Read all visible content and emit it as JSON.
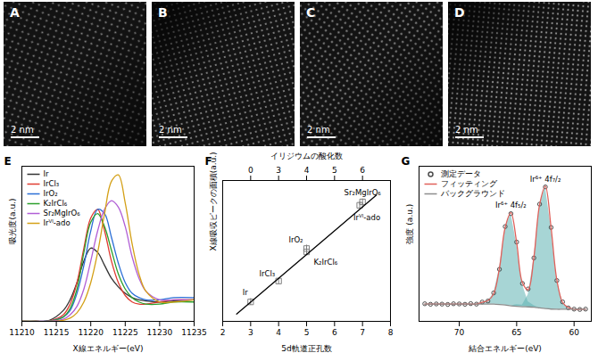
{
  "images": [
    {
      "label": "A",
      "scale_bar": "2 nm"
    },
    {
      "label": "B",
      "scale_bar": "2 nm"
    },
    {
      "label": "C",
      "scale_bar": "2 nm"
    },
    {
      "label": "D",
      "scale_bar": "2 nm"
    }
  ],
  "chart_data": [
    {
      "type": "line",
      "title": "E",
      "x_label": "X線エネルギー(eV)",
      "y_label": "吸光度(a.u.)",
      "x": [
        11210,
        11212,
        11214,
        11216,
        11217,
        11218,
        11219,
        11220,
        11221,
        11222,
        11223,
        11224,
        11225,
        11226,
        11227,
        11228,
        11230,
        11232,
        11235
      ],
      "xlim": [
        11210,
        11235
      ],
      "xticks": [
        11210,
        11215,
        11220,
        11225,
        11230,
        11235
      ],
      "ylim": [
        0,
        7.2
      ],
      "tick_labels": "x",
      "legend": "upper left",
      "series": [
        {
          "name": "Ir",
          "color": "#333333",
          "values": [
            0,
            0,
            0.05,
            0.5,
            1.0,
            1.8,
            2.8,
            3.4,
            3.2,
            2.6,
            2.0,
            1.6,
            1.3,
            1.1,
            1.0,
            0.95,
            0.9,
            0.95,
            1.0
          ]
        },
        {
          "name": "IrCl₃",
          "color": "#e03c31",
          "values": [
            0,
            0,
            0.02,
            0.3,
            0.8,
            1.8,
            3.4,
            4.8,
            5.2,
            4.2,
            2.8,
            1.8,
            1.2,
            0.9,
            0.8,
            0.8,
            0.9,
            1.0,
            1.0
          ]
        },
        {
          "name": "IrO₂",
          "color": "#2b6fd6",
          "values": [
            0,
            0,
            0.01,
            0.2,
            0.5,
            1.3,
            2.6,
            4.2,
            5.2,
            5.0,
            3.9,
            2.7,
            1.8,
            1.3,
            1.1,
            1.0,
            1.0,
            1.1,
            1.1
          ]
        },
        {
          "name": "K₂IrCl₆",
          "color": "#2ca02c",
          "values": [
            0,
            0,
            0.01,
            0.2,
            0.6,
            1.5,
            3.2,
            4.6,
            5.0,
            4.4,
            3.3,
            2.2,
            1.5,
            1.1,
            0.9,
            0.8,
            0.8,
            0.9,
            0.9
          ]
        },
        {
          "name": "Sr₂MgIrO₆",
          "color": "#b15fd6",
          "values": [
            0,
            0,
            0.01,
            0.1,
            0.3,
            0.7,
            1.5,
            2.8,
            4.2,
            5.2,
            5.6,
            5.3,
            4.4,
            3.0,
            2.0,
            1.4,
            1.0,
            1.0,
            1.0
          ]
        },
        {
          "name": "Irⱽᴵ-ado",
          "color": "#d4a017",
          "values": [
            0,
            0,
            0,
            0.05,
            0.15,
            0.4,
            0.9,
            1.8,
            3.2,
            5.0,
            6.5,
            6.8,
            5.5,
            3.6,
            2.2,
            1.4,
            0.9,
            0.9,
            1.0
          ]
        }
      ]
    },
    {
      "type": "scatter",
      "title": "F",
      "x_label": "5d軌道正孔数",
      "y_label": "X線吸収ピークの面積(a.u.)",
      "x2_label": "イリジウムの酸化数",
      "xlim": [
        2,
        8
      ],
      "xticks": [
        2,
        3,
        4,
        5,
        6,
        7,
        8
      ],
      "x2ticks": [
        {
          "value": 3,
          "label": "0"
        },
        {
          "value": 4,
          "label": "3"
        },
        {
          "value": 5,
          "label": "4"
        },
        {
          "value": 6,
          "label": "5"
        },
        {
          "value": 7,
          "label": "6"
        }
      ],
      "ylim": [
        8,
        37
      ],
      "tick_labels": "x",
      "series": [
        {
          "type": "scatter",
          "color": "#7f7f7f",
          "marker": "square",
          "x": [
            3,
            4,
            5,
            5,
            7,
            6.9
          ],
          "values": [
            12,
            16.3,
            23,
            22.3,
            32.6,
            31.9
          ],
          "errors": [
            0.7,
            0.6,
            0.7,
            0.7,
            0.6,
            0.7
          ],
          "labels": [
            "Ir",
            "IrCl₃",
            "IrO₂",
            "K₂IrCl₆",
            "Sr₂MgIrO₆",
            "Irⱽᴵ-ado"
          ]
        },
        {
          "type": "line",
          "color": "#000000",
          "x": [
            2.5,
            7.5
          ],
          "values": [
            9.5,
            34
          ]
        }
      ]
    },
    {
      "type": "line",
      "title": "G",
      "x_label": "結合エネルギー(eV)",
      "y_label": "強度 (a.u.)",
      "x": [
        73,
        72.5,
        72,
        71.5,
        71,
        70.5,
        70,
        69.5,
        69,
        68.5,
        68,
        67.5,
        67,
        66.5,
        66,
        65.5,
        65,
        64.5,
        64,
        63.5,
        63,
        62.5,
        62,
        61.5,
        61,
        60.5,
        60,
        59.5,
        59
      ],
      "xlim": [
        73.5,
        58.5
      ],
      "xticks": [
        70,
        65,
        60
      ],
      "ylim": [
        0.05,
        0.95
      ],
      "tick_labels": "x",
      "legend": "upper left",
      "series": [
        {
          "name": "測定データ",
          "type": "scatter",
          "marker": "circle",
          "color": "#4d4d4d",
          "values": [
            0.152,
            0.149,
            0.151,
            0.15,
            0.148,
            0.152,
            0.151,
            0.149,
            0.153,
            0.15,
            0.162,
            0.168,
            0.215,
            0.352,
            0.6,
            0.675,
            0.51,
            0.27,
            0.238,
            0.418,
            0.73,
            0.83,
            0.595,
            0.287,
            0.163,
            0.128,
            0.121,
            0.119,
            0.121
          ]
        },
        {
          "name": "フィッティング",
          "type": "line",
          "color": "#e0605a",
          "values": [
            0.15,
            0.15,
            0.15,
            0.15,
            0.15,
            0.15,
            0.15,
            0.15,
            0.15,
            0.15,
            0.16,
            0.17,
            0.21,
            0.358,
            0.595,
            0.68,
            0.507,
            0.275,
            0.234,
            0.422,
            0.728,
            0.834,
            0.591,
            0.29,
            0.16,
            0.13,
            0.12,
            0.12,
            0.12
          ]
        },
        {
          "name": "バックグラウンド",
          "type": "line",
          "color": "#8c8c8c",
          "values": [
            0.15,
            0.15,
            0.15,
            0.15,
            0.15,
            0.15,
            0.15,
            0.15,
            0.15,
            0.15,
            0.15,
            0.15,
            0.15,
            0.148,
            0.145,
            0.14,
            0.137,
            0.135,
            0.134,
            0.132,
            0.128,
            0.124,
            0.121,
            0.12,
            0.12,
            0.12,
            0.12,
            0.12,
            0.12
          ]
        }
      ],
      "areas": [
        {
          "label": "Ir⁶⁺ 4f₅/₂",
          "color": "#5fb3b3",
          "values": [
            0,
            0,
            0,
            0,
            0,
            0,
            0,
            0,
            0,
            0,
            0.01,
            0.02,
            0.06,
            0.21,
            0.45,
            0.54,
            0.36,
            0.13,
            0.03,
            0.01,
            0,
            0,
            0,
            0,
            0,
            0,
            0,
            0,
            0
          ]
        },
        {
          "label": "Ir⁶⁺ 4f₇/₂",
          "color": "#5fb3b3",
          "values": [
            0,
            0,
            0,
            0,
            0,
            0,
            0,
            0,
            0,
            0,
            0,
            0,
            0,
            0,
            0,
            0,
            0.01,
            0.01,
            0.07,
            0.28,
            0.6,
            0.71,
            0.47,
            0.17,
            0.04,
            0.01,
            0,
            0,
            0
          ]
        }
      ]
    }
  ]
}
